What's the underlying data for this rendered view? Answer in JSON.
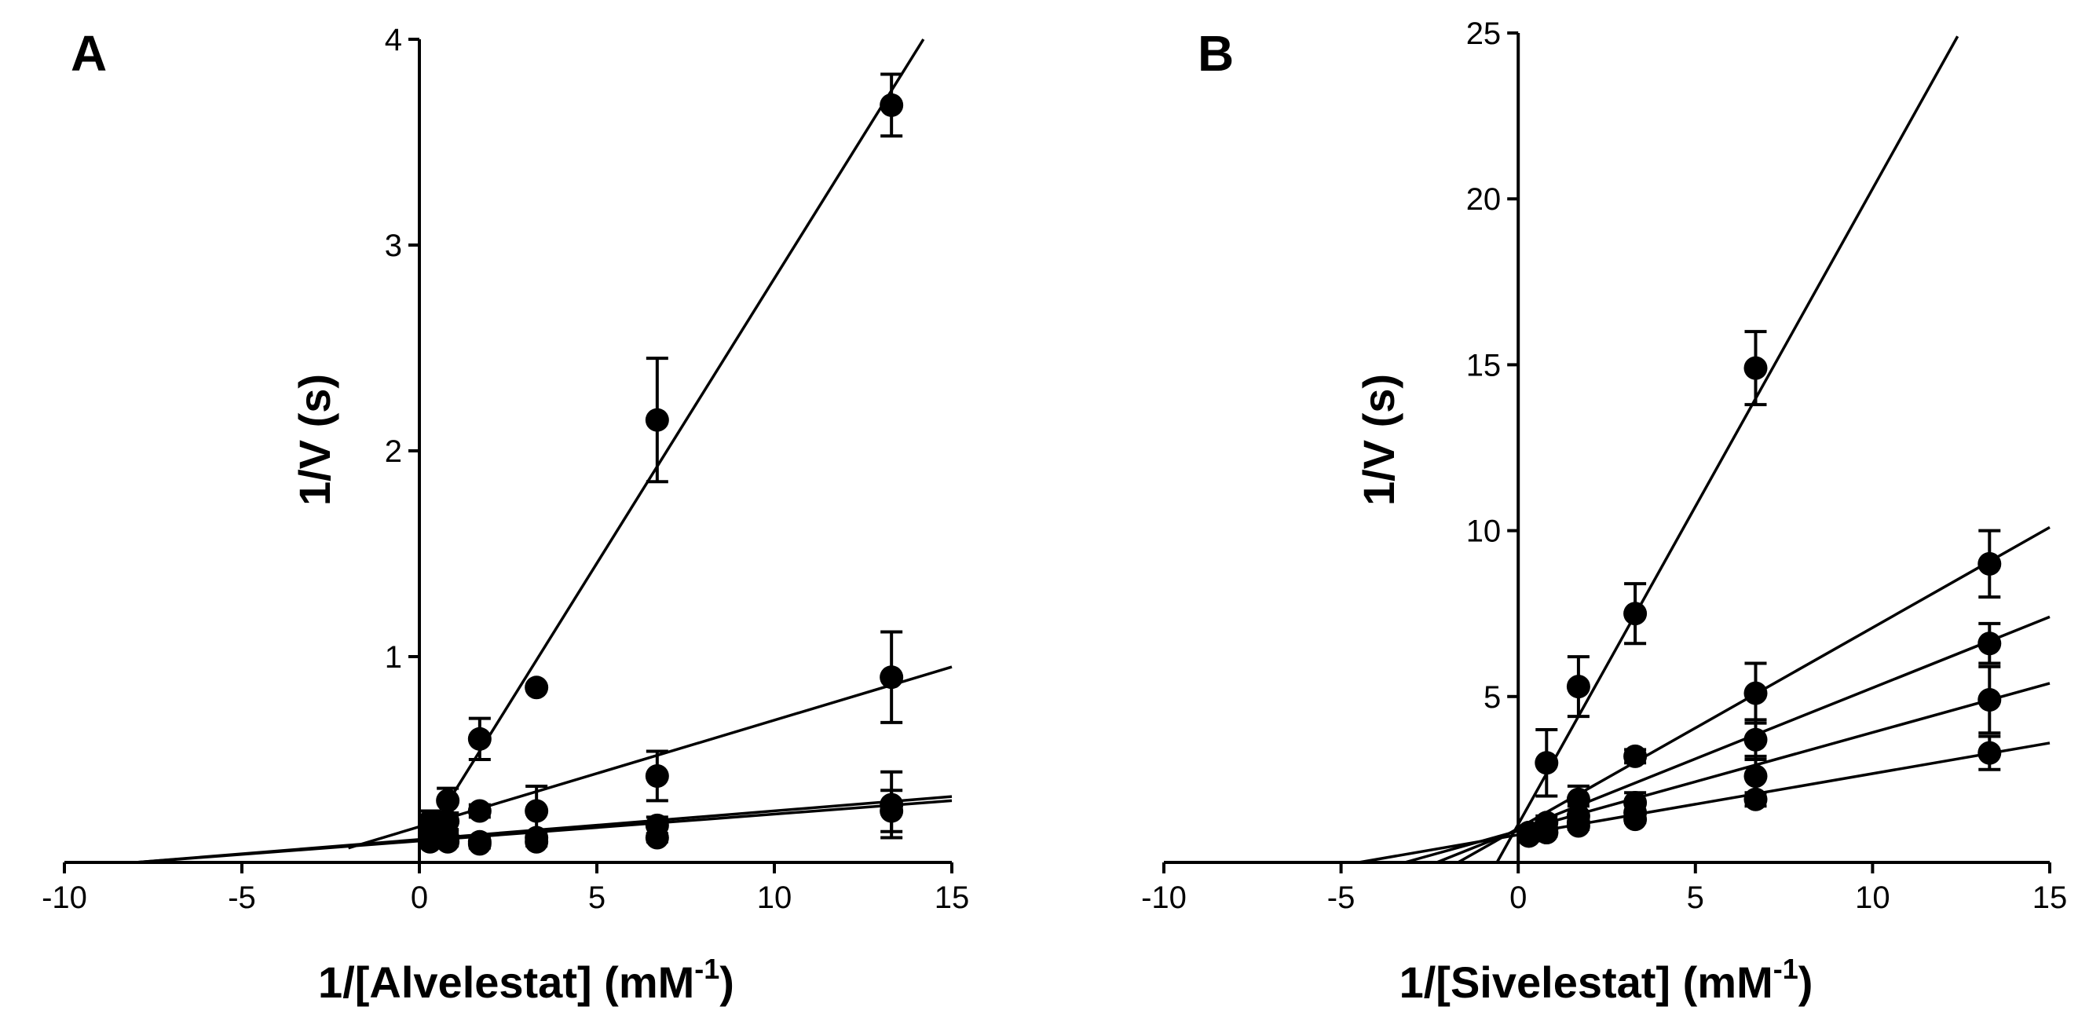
{
  "chart_data": [
    {
      "type": "line",
      "panel_label": "A",
      "xlabel_main": "1/[Alvelestat] (mM",
      "xlabel_sup": "-1",
      "xlabel_end": ")",
      "ylabel": "1/V (s)",
      "xlim": [
        -10,
        15
      ],
      "ylim": [
        0,
        4
      ],
      "xticks": [
        "-10",
        "-5",
        "0",
        "5",
        "10",
        "15"
      ],
      "xtick_values": [
        -10,
        -5,
        0,
        5,
        10,
        15
      ],
      "yticks": [
        "1",
        "2",
        "3",
        "4"
      ],
      "ytick_values": [
        1,
        2,
        3,
        4
      ],
      "series": [
        {
          "line": {
            "x": [
              0,
              14.2
            ],
            "y": [
              0.07,
              4.0
            ]
          },
          "points": [
            {
              "x": 0.3,
              "y": 0.18,
              "err": 0.05
            },
            {
              "x": 0.8,
              "y": 0.3,
              "err": 0.06
            },
            {
              "x": 1.7,
              "y": 0.6,
              "err": 0.1
            },
            {
              "x": 3.3,
              "y": 0.85,
              "err": 0
            },
            {
              "x": 6.7,
              "y": 2.15,
              "err": 0.3
            },
            {
              "x": 13.3,
              "y": 3.68,
              "err": 0.15
            }
          ]
        },
        {
          "line": {
            "x": [
              -2,
              15
            ],
            "y": [
              0.07,
              0.95
            ]
          },
          "points": [
            {
              "x": 0.3,
              "y": 0.2,
              "err": 0.05
            },
            {
              "x": 0.8,
              "y": 0.2,
              "err": 0.04
            },
            {
              "x": 1.7,
              "y": 0.25,
              "err": 0.03
            },
            {
              "x": 3.3,
              "y": 0.25,
              "err": 0.12
            },
            {
              "x": 6.7,
              "y": 0.42,
              "err": 0.12
            },
            {
              "x": 13.3,
              "y": 0.9,
              "err": 0.22
            }
          ]
        },
        {
          "line": {
            "x": [
              -8,
              15
            ],
            "y": [
              0,
              0.3
            ]
          },
          "points": [
            {
              "x": 0.3,
              "y": 0.12,
              "err": 0.03
            },
            {
              "x": 0.8,
              "y": 0.12,
              "err": 0.03
            },
            {
              "x": 1.7,
              "y": 0.1,
              "err": 0.02
            },
            {
              "x": 3.3,
              "y": 0.12,
              "err": 0.03
            },
            {
              "x": 6.7,
              "y": 0.18,
              "err": 0.04
            },
            {
              "x": 13.3,
              "y": 0.28,
              "err": 0.16
            }
          ]
        },
        {
          "line": {
            "x": [
              -8,
              15
            ],
            "y": [
              0,
              0.32
            ]
          },
          "points": [
            {
              "x": 0.3,
              "y": 0.1,
              "err": 0.02
            },
            {
              "x": 0.8,
              "y": 0.1,
              "err": 0.02
            },
            {
              "x": 1.7,
              "y": 0.09,
              "err": 0.02
            },
            {
              "x": 3.3,
              "y": 0.1,
              "err": 0.02
            },
            {
              "x": 6.7,
              "y": 0.12,
              "err": 0.02
            },
            {
              "x": 13.3,
              "y": 0.25,
              "err": 0.1
            }
          ]
        }
      ]
    },
    {
      "type": "line",
      "panel_label": "B",
      "xlabel_main": "1/[Sivelestat] (mM",
      "xlabel_sup": "-1",
      "xlabel_end": ")",
      "ylabel": "1/V (s)",
      "xlim": [
        -10,
        15
      ],
      "ylim": [
        0,
        25
      ],
      "xticks": [
        "-10",
        "-5",
        "0",
        "5",
        "10",
        "15"
      ],
      "xtick_values": [
        -10,
        -5,
        0,
        5,
        10,
        15
      ],
      "yticks": [
        "5",
        "10",
        "15",
        "20",
        "25"
      ],
      "ytick_values": [
        5,
        10,
        15,
        20,
        25
      ],
      "series": [
        {
          "line": {
            "x": [
              -0.6,
              12.4
            ],
            "y": [
              0,
              24.9
            ]
          },
          "points": [
            {
              "x": 0.3,
              "y": 0.9,
              "err": 0.2
            },
            {
              "x": 0.8,
              "y": 3.0,
              "err": 1.0
            },
            {
              "x": 1.7,
              "y": 5.3,
              "err": 0.9
            },
            {
              "x": 3.3,
              "y": 7.5,
              "err": 0.9
            },
            {
              "x": 6.7,
              "y": 14.9,
              "err": 1.1
            }
          ]
        },
        {
          "line": {
            "x": [
              -1.7,
              15
            ],
            "y": [
              0,
              10.1
            ]
          },
          "points": [
            {
              "x": 0.3,
              "y": 0.9,
              "err": 0.2
            },
            {
              "x": 0.8,
              "y": 1.2,
              "err": 0.2
            },
            {
              "x": 1.7,
              "y": 1.9,
              "err": 0.4
            },
            {
              "x": 3.3,
              "y": 3.2,
              "err": 0.2
            },
            {
              "x": 6.7,
              "y": 5.1,
              "err": 0.9
            },
            {
              "x": 13.3,
              "y": 9.0,
              "err": 1.0
            }
          ]
        },
        {
          "line": {
            "x": [
              -2.3,
              15
            ],
            "y": [
              0,
              7.4
            ]
          },
          "points": [
            {
              "x": 0.3,
              "y": 0.8,
              "err": 0.15
            },
            {
              "x": 0.8,
              "y": 1.0,
              "err": 0.15
            },
            {
              "x": 1.7,
              "y": 1.4,
              "err": 0.3
            },
            {
              "x": 3.3,
              "y": 1.8,
              "err": 0.3
            },
            {
              "x": 6.7,
              "y": 3.7,
              "err": 0.6
            },
            {
              "x": 13.3,
              "y": 6.6,
              "err": 0.6
            }
          ]
        },
        {
          "line": {
            "x": [
              -3.2,
              15
            ],
            "y": [
              0,
              5.4
            ]
          },
          "points": [
            {
              "x": 0.3,
              "y": 0.8,
              "err": 0.1
            },
            {
              "x": 0.8,
              "y": 0.9,
              "err": 0.1
            },
            {
              "x": 1.7,
              "y": 1.2,
              "err": 0.2
            },
            {
              "x": 3.3,
              "y": 1.5,
              "err": 0.3
            },
            {
              "x": 6.7,
              "y": 2.6,
              "err": 0.6
            },
            {
              "x": 13.3,
              "y": 4.9,
              "err": 1.0
            }
          ]
        },
        {
          "line": {
            "x": [
              -4.5,
              15
            ],
            "y": [
              0,
              3.6
            ]
          },
          "points": [
            {
              "x": 0.3,
              "y": 0.8,
              "err": 0.1
            },
            {
              "x": 0.8,
              "y": 0.9,
              "err": 0.1
            },
            {
              "x": 1.7,
              "y": 1.1,
              "err": 0.1
            },
            {
              "x": 3.3,
              "y": 1.3,
              "err": 0.1
            },
            {
              "x": 6.7,
              "y": 1.9,
              "err": 0.2
            },
            {
              "x": 13.3,
              "y": 3.3,
              "err": 0.5
            }
          ]
        }
      ]
    }
  ]
}
